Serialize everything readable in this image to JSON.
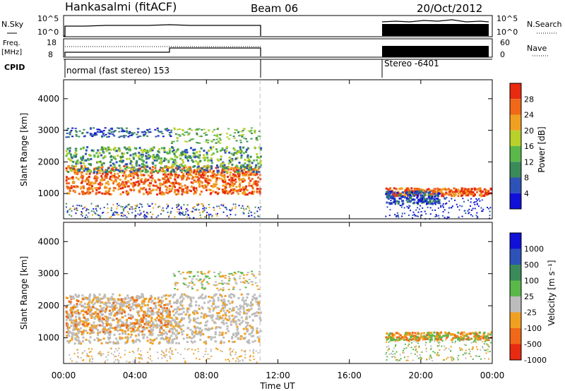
{
  "header": {
    "station": "Hankasalmi (fitACF)",
    "beam": "Beam 06",
    "date": "20/Oct/2012"
  },
  "panels": {
    "nsky_label": "N.Sky",
    "nsky_ticks": [
      "10^5",
      "10^0"
    ],
    "nsearch_label": "N.Search",
    "freq_label_1": "Freq.",
    "freq_label_2": "[MHz]",
    "freq_ticks": [
      "18",
      "8"
    ],
    "nave_label": "Nave",
    "nave_ticks": [
      "60",
      "0"
    ],
    "cpid_label": "CPID",
    "cpid_segments": [
      "normal (fast stereo) 153",
      "Stereo -6401"
    ]
  },
  "x_axis": {
    "label": "Time UT",
    "ticks": [
      "00:00",
      "04:00",
      "08:00",
      "12:00",
      "16:00",
      "20:00",
      "00:00"
    ]
  },
  "colors": {
    "power": [
      "#1010d8",
      "#2d52b8",
      "#3a8a5a",
      "#5ab84a",
      "#b8d02a",
      "#f0a020",
      "#f06818",
      "#e82a10"
    ],
    "velocity": [
      "#1010d8",
      "#2d52b8",
      "#3a8a5a",
      "#5ab84a",
      "#bcbcbc",
      "#f0a020",
      "#f06818",
      "#e82a10"
    ]
  },
  "chart_data": [
    {
      "type": "heatmap",
      "ylabel": "Slant Range [km]",
      "y_ticks": [
        "1000",
        "2000",
        "3000",
        "4000"
      ],
      "colorbar_label": "Power [dB]",
      "colorbar_ticks": [
        "4",
        "8",
        "12",
        "16",
        "20",
        "24",
        "28"
      ],
      "time_ranges_hours": [
        [
          0,
          11
        ],
        [
          18,
          24
        ]
      ]
    },
    {
      "type": "heatmap",
      "ylabel": "Slant Range [km]",
      "y_ticks": [
        "1000",
        "2000",
        "3000",
        "4000"
      ],
      "colorbar_label": "Velocity [m s⁻¹]",
      "colorbar_ticks": [
        "1000",
        "500",
        "100",
        "25",
        "-25",
        "-100",
        "-500",
        "-1000"
      ],
      "time_ranges_hours": [
        [
          0,
          11
        ],
        [
          18,
          24
        ]
      ]
    }
  ]
}
